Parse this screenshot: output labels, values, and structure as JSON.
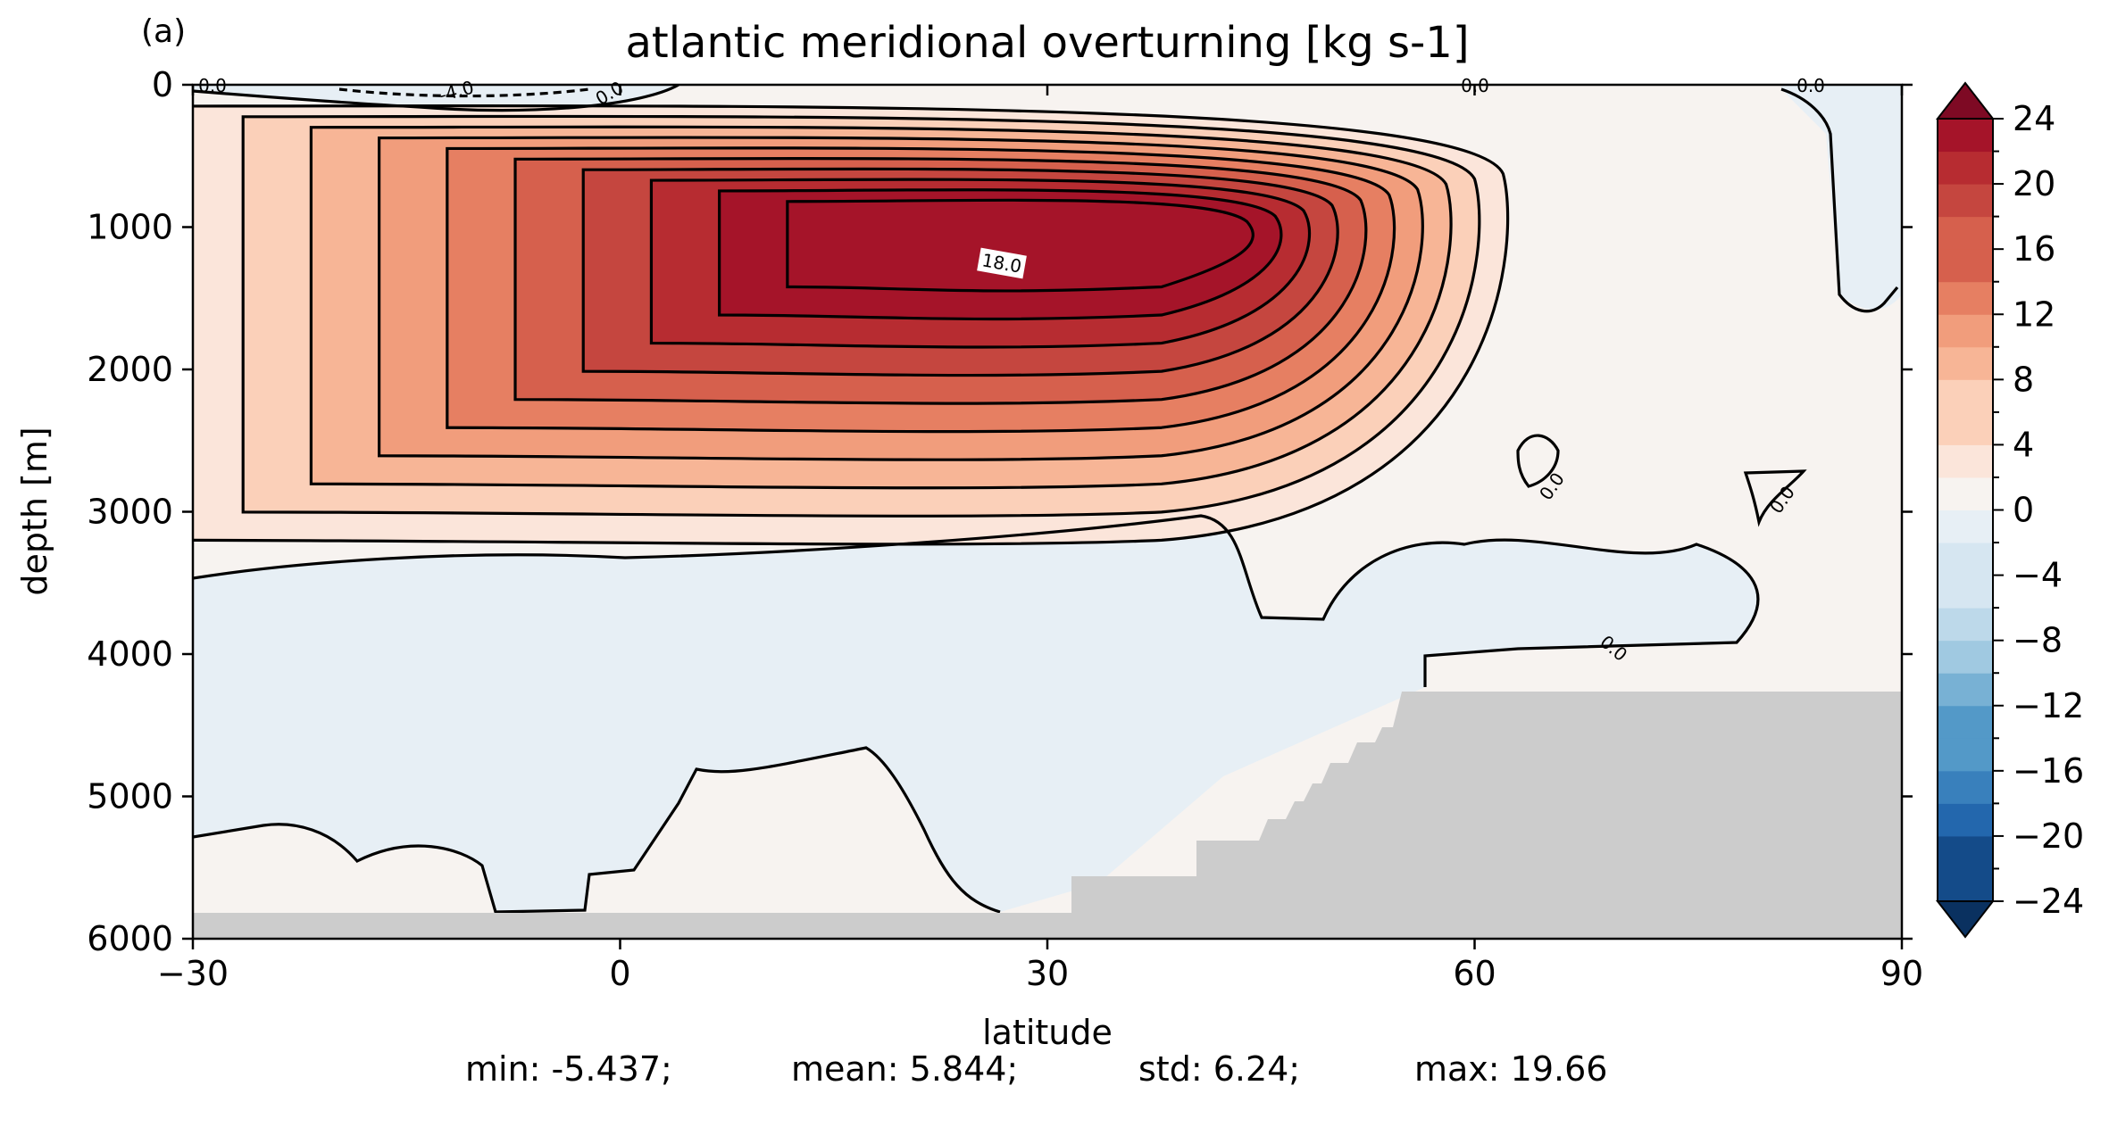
{
  "panel_label": "(a)",
  "chart_data": {
    "type": "heatmap",
    "title": "atlantic meridional overturning [kg s-1]",
    "xlabel": "latitude",
    "ylabel": "depth [m]",
    "xlim": [
      -30,
      90
    ],
    "ylim": [
      6000,
      0
    ],
    "x_ticks": [
      -30,
      0,
      30,
      60,
      90
    ],
    "x_tick_labels": [
      "−30",
      "0",
      "30",
      "60",
      "90"
    ],
    "y_ticks": [
      0,
      1000,
      2000,
      3000,
      4000,
      5000,
      6000
    ],
    "y_tick_labels": [
      "0",
      "1000",
      "2000",
      "3000",
      "4000",
      "5000",
      "6000"
    ],
    "colorbar": {
      "min": -24,
      "max": 24,
      "step": 2,
      "extend": "both",
      "tick_values": [
        24,
        20,
        16,
        12,
        8,
        4,
        0,
        -4,
        -8,
        -12,
        -16,
        -20,
        -24
      ],
      "tick_labels": [
        "24",
        "20",
        "16",
        "12",
        "8",
        "4",
        "0",
        "−4",
        "−8",
        "−12",
        "−16",
        "−20",
        "−24"
      ],
      "colors": [
        "#0a3160",
        "#144b89",
        "#2367ad",
        "#3980bc",
        "#5399c8",
        "#78b1d4",
        "#a0c9e1",
        "#bdd9ea",
        "#d6e6f1",
        "#e7eff5",
        "#f7f3f0",
        "#fbe5da",
        "#fbd0b9",
        "#f7b596",
        "#f19d7c",
        "#e67f62",
        "#d6604d",
        "#c5463f",
        "#b72c31",
        "#a51429",
        "#7e0a24"
      ],
      "cmap": "RdBu_r"
    },
    "contour_labels": [
      "0.0",
      "-4.0",
      "18.0",
      "0.0",
      "0.0",
      "0.0",
      "0.0",
      "0.0",
      "0.0"
    ],
    "land_color": "#cccccc",
    "stats": {
      "min": "min: -5.437;",
      "mean": "mean: 5.844;",
      "std": "std: 6.24;",
      "max": "max: 19.66"
    }
  }
}
